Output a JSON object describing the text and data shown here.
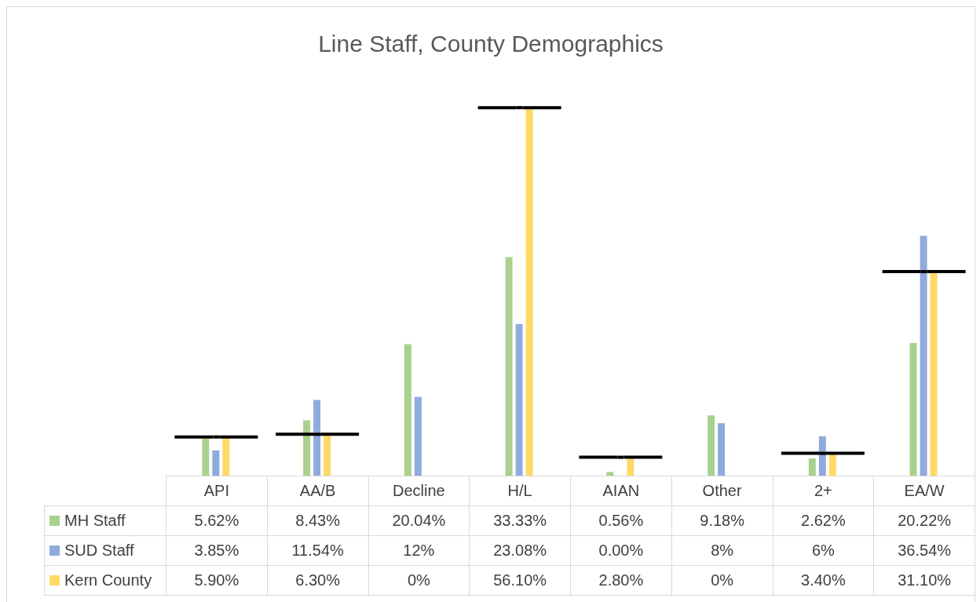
{
  "chart_data": {
    "type": "bar",
    "title": "Line Staff, County Demographics",
    "categories": [
      "API",
      "AA/B",
      "Decline",
      "H/L",
      "AIAN",
      "Other",
      "2+",
      "EA/W"
    ],
    "series": [
      {
        "name": "MH Staff",
        "color": "#a9d18e",
        "values": [
          5.62,
          8.43,
          20.04,
          33.33,
          0.56,
          9.18,
          2.62,
          20.22
        ],
        "value_labels": [
          "5.62%",
          "8.43%",
          "20.04%",
          "33.33%",
          "0.56%",
          "9.18%",
          "2.62%",
          "20.22%"
        ]
      },
      {
        "name": "SUD Staff",
        "color": "#8faadc",
        "values": [
          3.85,
          11.54,
          12,
          23.08,
          0,
          8,
          6,
          36.54
        ],
        "value_labels": [
          "3.85%",
          "11.54%",
          "12%",
          "23.08%",
          "0.00%",
          "8%",
          "6%",
          "36.54%"
        ]
      },
      {
        "name": "Kern County",
        "color": "#ffd966",
        "values": [
          5.9,
          6.3,
          0,
          56.1,
          2.8,
          0,
          3.4,
          31.1
        ],
        "value_labels": [
          "5.90%",
          "6.30%",
          "0%",
          "56.10%",
          "2.80%",
          "0%",
          "3.40%",
          "31.10%"
        ]
      },
      {
        "type": "scatter",
        "color": "#000000",
        "values": [
          5.9,
          6.3,
          null,
          56.1,
          2.8,
          null,
          3.4,
          31.1
        ]
      }
    ],
    "legend": "bottom",
    "tick_labels": false,
    "grid": false
  }
}
